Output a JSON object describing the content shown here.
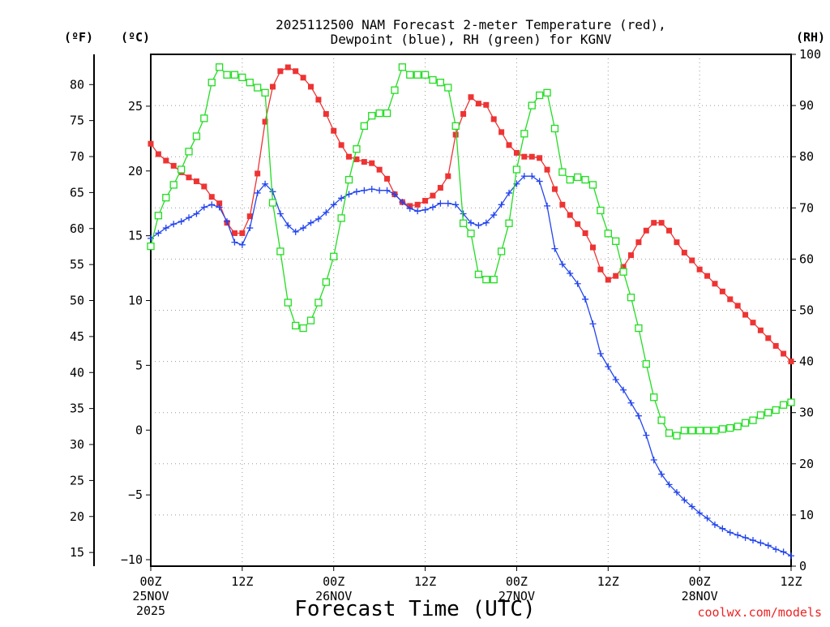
{
  "chart_data": {
    "type": "line",
    "title": [
      "2025112500 NAM Forecast 2-meter Temperature (red),",
      "Dewpoint (blue), RH (green) for KGNV"
    ],
    "xlabel": "Forecast Time (UTC)",
    "credit": "coolwx.com/models",
    "x_start": "2025-11-25T00Z",
    "x_step_hours": 1,
    "x_range_hours": [
      0,
      84
    ],
    "x_ticks": [
      {
        "hour": 0,
        "lines": [
          "00Z",
          "25NOV",
          "2025"
        ]
      },
      {
        "hour": 12,
        "lines": [
          "12Z"
        ]
      },
      {
        "hour": 24,
        "lines": [
          "00Z",
          "26NOV"
        ]
      },
      {
        "hour": 36,
        "lines": [
          "12Z"
        ]
      },
      {
        "hour": 48,
        "lines": [
          "00Z",
          "27NOV"
        ]
      },
      {
        "hour": 60,
        "lines": [
          "12Z"
        ]
      },
      {
        "hour": 72,
        "lines": [
          "00Z",
          "28NOV"
        ]
      },
      {
        "hour": 84,
        "lines": [
          "12Z"
        ]
      }
    ],
    "axes": {
      "celsius": {
        "unit_label": "(ºC)",
        "range": [
          -10.5,
          29
        ],
        "ticks": [
          -10,
          -5,
          0,
          5,
          10,
          15,
          20,
          25
        ]
      },
      "fahrenheit": {
        "unit_label": "(ºF)",
        "range": [
          13.1,
          84.2
        ],
        "ticks": [
          15,
          20,
          25,
          30,
          35,
          40,
          45,
          50,
          55,
          60,
          65,
          70,
          75,
          80
        ]
      },
      "rh": {
        "unit_label": "(RH)",
        "range": [
          0,
          100
        ],
        "ticks": [
          0,
          10,
          20,
          30,
          40,
          50,
          60,
          70,
          80,
          90,
          100
        ]
      }
    },
    "grid": true,
    "series": [
      {
        "key": "temperature",
        "axis": "celsius",
        "color": "#ee3333",
        "marker": "filled-square",
        "values": [
          22.1,
          21.3,
          20.8,
          20.4,
          19.9,
          19.5,
          19.2,
          18.8,
          18.0,
          17.5,
          16.0,
          15.2,
          15.2,
          16.5,
          19.8,
          23.8,
          26.5,
          27.7,
          28.0,
          27.7,
          27.2,
          26.5,
          25.5,
          24.4,
          23.1,
          22.0,
          21.1,
          20.9,
          20.7,
          20.6,
          20.1,
          19.4,
          18.2,
          17.6,
          17.3,
          17.4,
          17.7,
          18.1,
          18.7,
          19.6,
          22.8,
          24.4,
          25.7,
          25.2,
          25.1,
          24.0,
          23.0,
          22.0,
          21.4,
          21.1,
          21.1,
          21.0,
          20.1,
          18.6,
          17.4,
          16.6,
          15.9,
          15.2,
          14.1,
          12.4,
          11.6,
          11.9,
          12.6,
          13.5,
          14.5,
          15.4,
          16.0,
          16.0,
          15.4,
          14.5,
          13.7,
          13.1,
          12.4,
          11.9,
          11.3,
          10.7,
          10.1,
          9.6,
          8.9,
          8.3,
          7.7,
          7.1,
          6.5,
          5.9,
          5.3
        ]
      },
      {
        "key": "dewpoint",
        "axis": "celsius",
        "color": "#2244ee",
        "marker": "plus",
        "values": [
          14.8,
          15.2,
          15.6,
          15.9,
          16.1,
          16.4,
          16.7,
          17.2,
          17.4,
          17.2,
          16.1,
          14.5,
          14.3,
          15.6,
          18.3,
          19.0,
          18.4,
          16.7,
          15.8,
          15.3,
          15.6,
          16.0,
          16.3,
          16.8,
          17.4,
          17.9,
          18.2,
          18.4,
          18.5,
          18.6,
          18.5,
          18.5,
          18.2,
          17.6,
          17.1,
          16.9,
          17.0,
          17.2,
          17.5,
          17.5,
          17.4,
          16.7,
          16.0,
          15.8,
          16.0,
          16.6,
          17.4,
          18.3,
          19.0,
          19.6,
          19.6,
          19.2,
          17.3,
          14.0,
          12.8,
          12.1,
          11.3,
          10.1,
          8.2,
          5.9,
          4.9,
          3.9,
          3.1,
          2.1,
          1.1,
          -0.4,
          -2.3,
          -3.4,
          -4.2,
          -4.8,
          -5.4,
          -5.9,
          -6.4,
          -6.8,
          -7.3,
          -7.6,
          -7.9,
          -8.1,
          -8.3,
          -8.5,
          -8.7,
          -8.9,
          -9.2,
          -9.4,
          -9.7
        ]
      },
      {
        "key": "rh",
        "axis": "rh",
        "color": "#22dd22",
        "marker": "open-square",
        "values": [
          62.5,
          68.5,
          72.0,
          74.5,
          77.5,
          81.0,
          84.0,
          87.5,
          94.5,
          97.5,
          96.0,
          96.0,
          95.5,
          94.5,
          93.5,
          92.5,
          71.0,
          61.5,
          51.5,
          47.0,
          46.5,
          48.0,
          51.5,
          55.5,
          60.5,
          68.0,
          75.5,
          81.5,
          86.0,
          88.0,
          88.5,
          88.5,
          93.0,
          97.5,
          96.0,
          96.0,
          96.0,
          95.0,
          94.5,
          93.5,
          86.0,
          67.0,
          65.0,
          57.0,
          56.0,
          56.0,
          61.5,
          67.0,
          77.5,
          84.5,
          90.0,
          92.0,
          92.5,
          85.5,
          77.0,
          75.5,
          76.0,
          75.5,
          74.5,
          69.5,
          65.0,
          63.5,
          57.5,
          52.5,
          46.5,
          39.5,
          33.0,
          28.5,
          26.0,
          25.5,
          26.5,
          26.5,
          26.5,
          26.5,
          26.5,
          26.8,
          27.0,
          27.3,
          28.0,
          28.5,
          29.5,
          30.0,
          30.5,
          31.5,
          32.0
        ]
      }
    ]
  }
}
